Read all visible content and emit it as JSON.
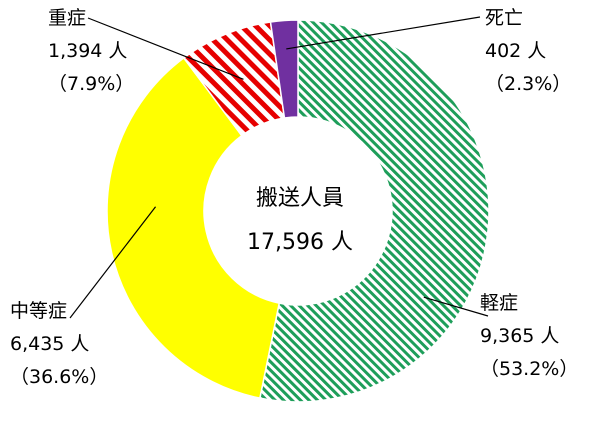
{
  "chart_data": {
    "type": "pie",
    "donut": true,
    "start": "top, clockwise",
    "center": {
      "title": "搬送人員",
      "total": "17,596 人"
    },
    "slices": [
      {
        "name": "軽症",
        "count": "9,365 人",
        "pct": "（53.2%）",
        "value": 53.2,
        "color": "#1e9e5a",
        "fill": "diagonal-stripe"
      },
      {
        "name": "中等症",
        "count": "6,435 人",
        "pct": "（36.6%）",
        "value": 36.6,
        "color": "#ffff00",
        "fill": "solid"
      },
      {
        "name": "重症",
        "count": "1,394 人",
        "pct": "（7.9%）",
        "value": 7.9,
        "color": "#e60000",
        "fill": "diagonal-stripe"
      },
      {
        "name": "死亡",
        "count": "402 人",
        "pct": "（2.3%）",
        "value": 2.3,
        "color": "#7030a0",
        "fill": "solid"
      }
    ]
  }
}
